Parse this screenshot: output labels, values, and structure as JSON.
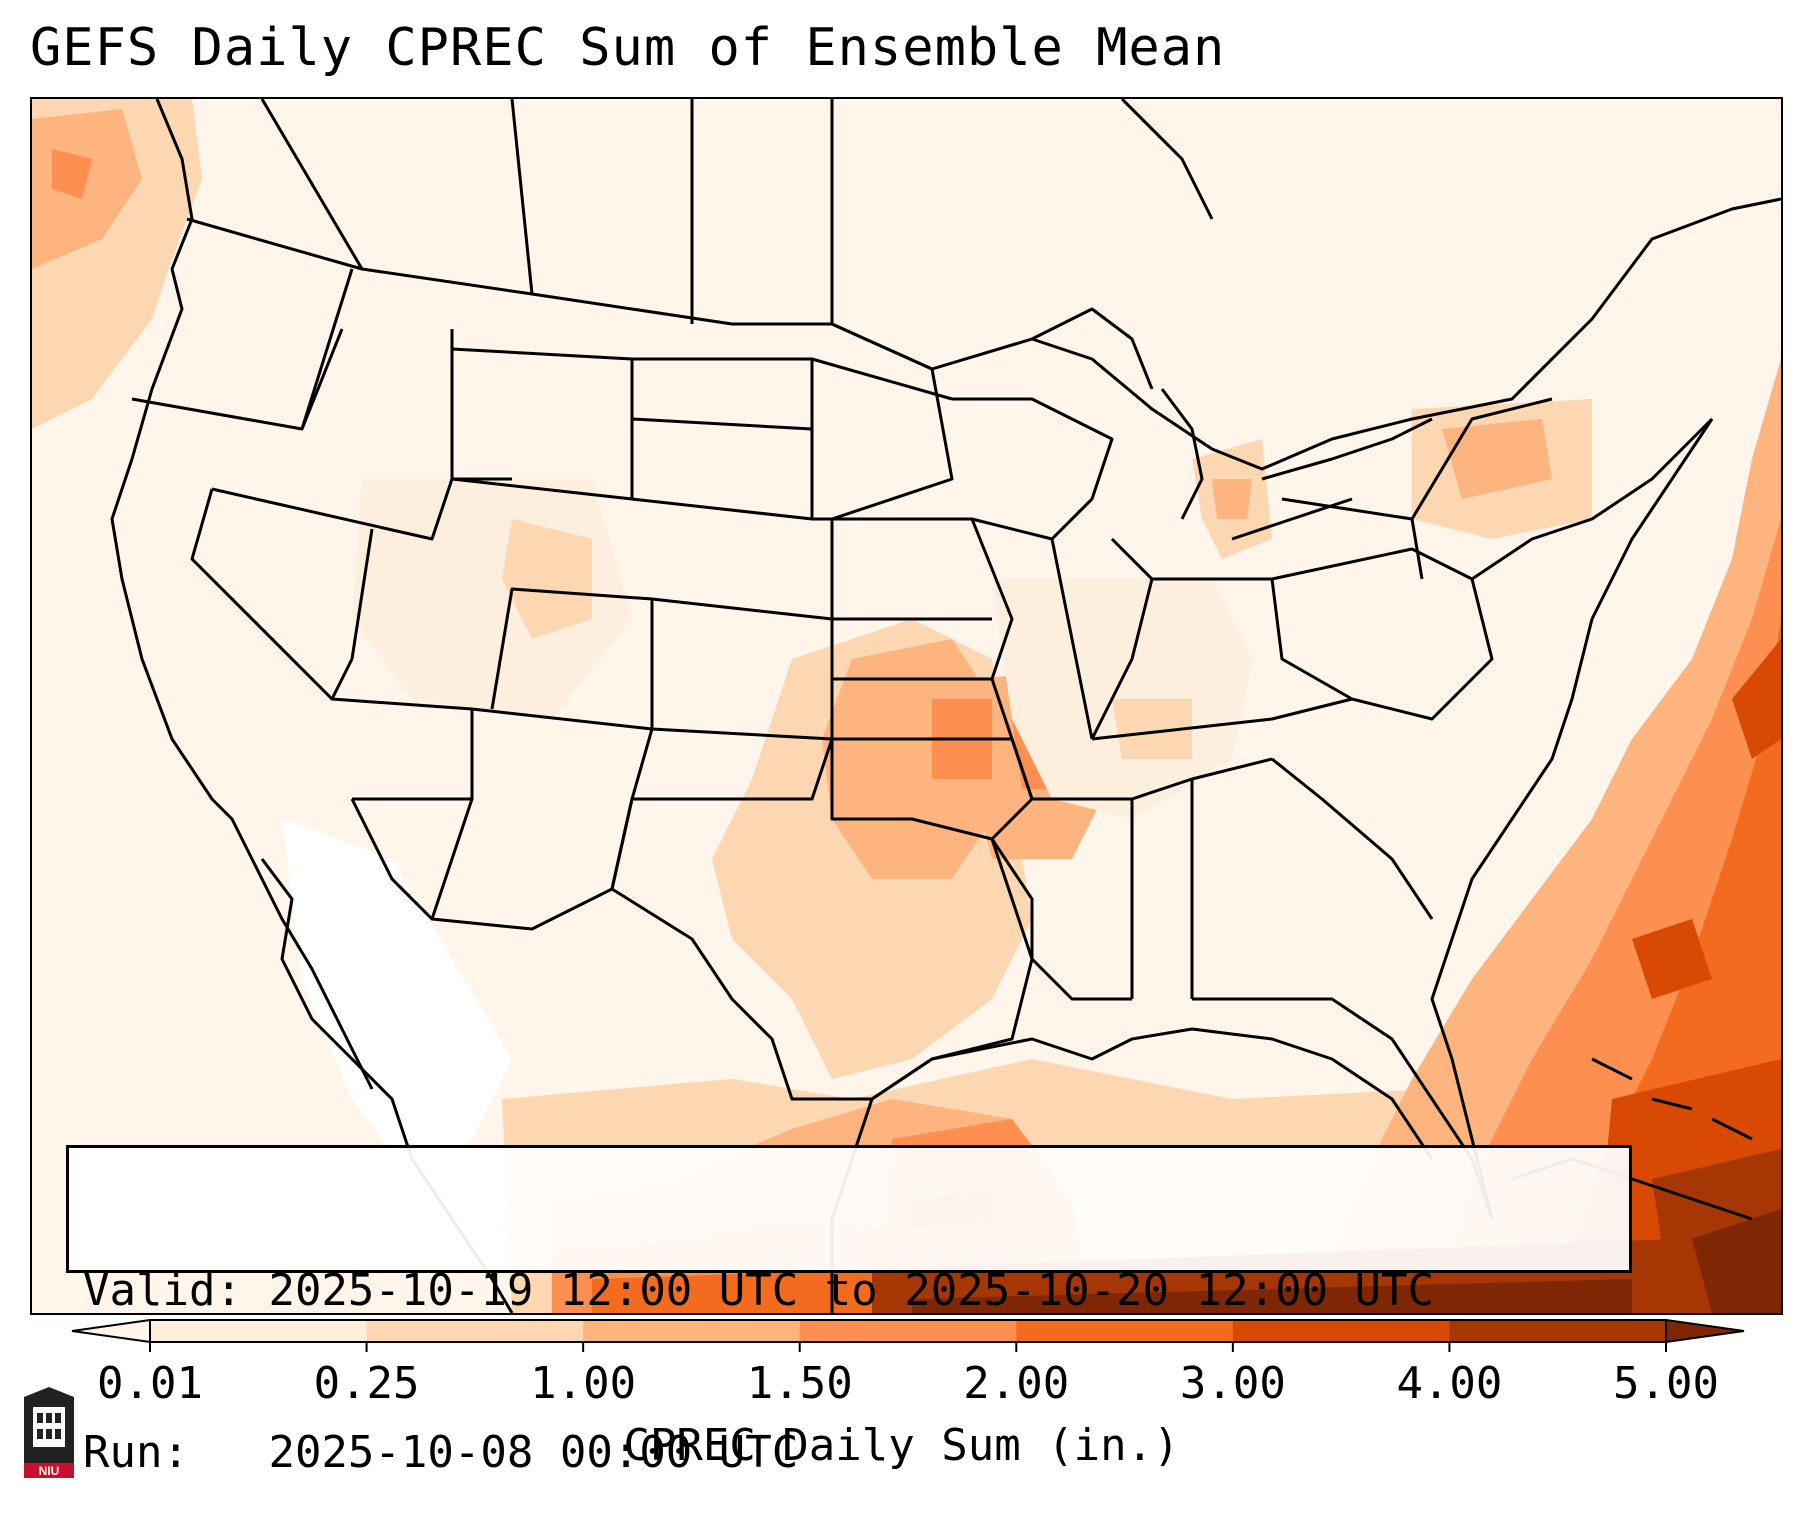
{
  "title": "GEFS Daily CPREC Sum of Ensemble Mean",
  "info": {
    "valid_label": "Valid:",
    "valid_value": "2025-10-19 12:00 UTC to 2025-10-20 12:00 UTC",
    "run_label": "Run:",
    "run_value": "2025-10-08 00:00 UTC"
  },
  "colorbar": {
    "label": "CPREC Daily Sum (in.)",
    "ticks": [
      "0.01",
      "0.25",
      "1.00",
      "1.50",
      "2.00",
      "3.00",
      "4.00",
      "5.00"
    ],
    "colors": [
      "#feeedd",
      "#fdd7b2",
      "#fdb47e",
      "#fd9050",
      "#f26b1e",
      "#d84a04",
      "#a63603"
    ],
    "extend_min_color": "#fff5eb",
    "extend_max_color": "#7f2704"
  },
  "map": {
    "background_color": "#fff5eb",
    "boundary_color": "#000000"
  },
  "logo": {
    "text": "NIU"
  }
}
